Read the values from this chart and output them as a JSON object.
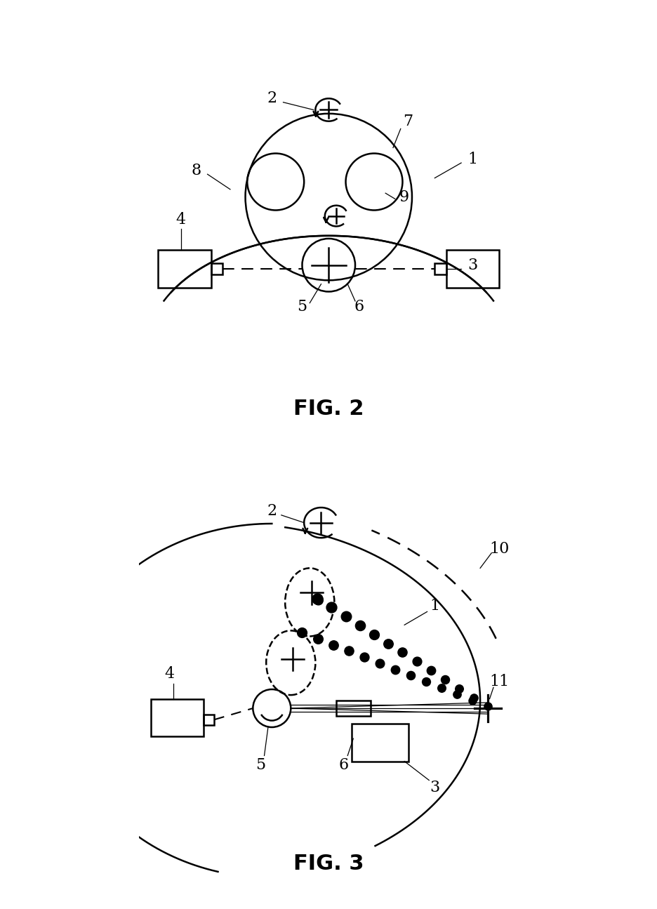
{
  "fig2_title": "FIG. 2",
  "fig3_title": "FIG. 3",
  "bg_color": "#ffffff"
}
